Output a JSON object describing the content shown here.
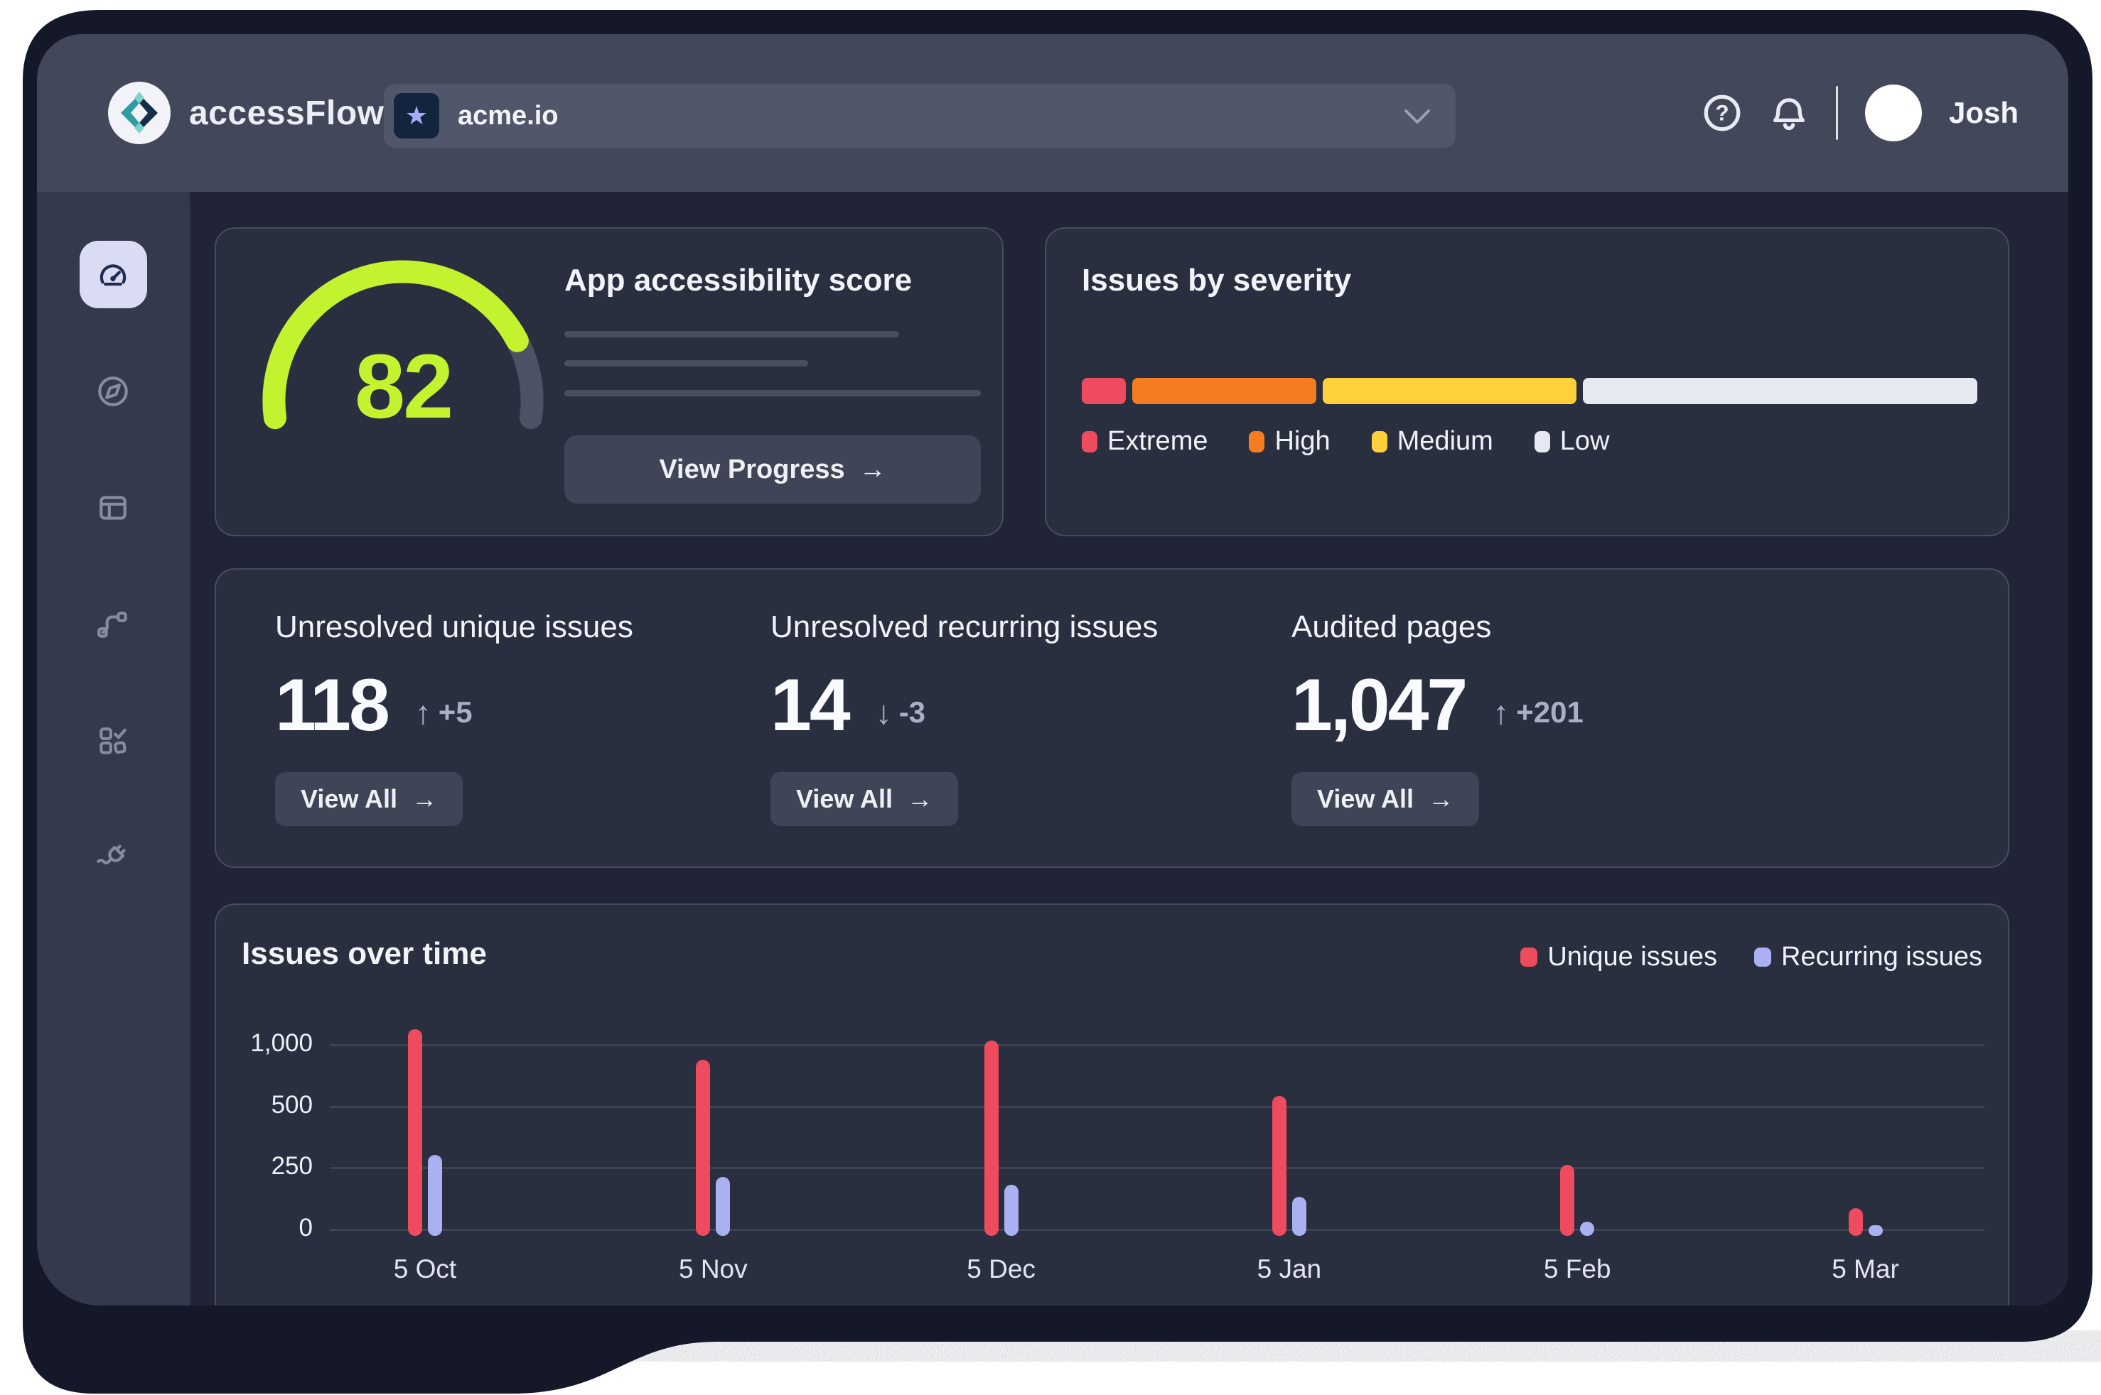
{
  "colors": {
    "accent_lime": "#c3f22f",
    "gauge_track": "#4d5364",
    "severity_extreme": "#ee4b5e",
    "severity_high": "#f57c20",
    "severity_medium": "#fed13c",
    "severity_low": "#e7e9f2",
    "chart_unique": "#ee4b5e",
    "chart_recurring": "#abb0f2",
    "window_frame": "#141828",
    "header_bg": "#42475a",
    "card_bg": "#2a2f40"
  },
  "header": {
    "brand": "accessFlow",
    "project": {
      "icon": "star-icon",
      "value": "acme.io"
    },
    "user": {
      "name": "Josh"
    }
  },
  "sidebar": {
    "items": [
      {
        "id": "dashboard",
        "icon": "gauge-icon",
        "active": true
      },
      {
        "id": "explore",
        "icon": "compass-icon",
        "active": false
      },
      {
        "id": "pages",
        "icon": "layout-icon",
        "active": false
      },
      {
        "id": "flows",
        "icon": "route-icon",
        "active": false
      },
      {
        "id": "checks",
        "icon": "tasks-check-icon",
        "active": false
      },
      {
        "id": "integrations",
        "icon": "plug-icon",
        "active": false
      }
    ]
  },
  "score_card": {
    "title": "App accessibility score",
    "score": "82",
    "score_value": 82,
    "score_max": 100,
    "button_label": "View Progress",
    "button_arrow": "→"
  },
  "severity_card": {
    "title": "Issues by severity",
    "segments": [
      {
        "label": "Extreme",
        "color": "#ee4b5e",
        "percent": 5
      },
      {
        "label": "High",
        "color": "#f57c20",
        "percent": 21
      },
      {
        "label": "Medium",
        "color": "#fed13c",
        "percent": 29
      },
      {
        "label": "Low",
        "color": "#e7e9f2",
        "percent": 45
      }
    ]
  },
  "stats_card": {
    "stats": [
      {
        "label": "Unresolved unique issues",
        "value": "118",
        "trend": "up",
        "arrow": "↑",
        "delta": "+5",
        "button_label": "View All",
        "button_arrow": "→"
      },
      {
        "label": "Unresolved recurring issues",
        "value": "14",
        "trend": "down",
        "arrow": "↓",
        "delta": "-3",
        "button_label": "View All",
        "button_arrow": "→"
      },
      {
        "label": "Audited pages",
        "value": "1,047",
        "trend": "up",
        "arrow": "↑",
        "delta": "+201",
        "button_label": "View All",
        "button_arrow": "→"
      }
    ]
  },
  "chart_card": {
    "title": "Issues over time"
  },
  "chart_data": {
    "type": "bar",
    "title": "Issues over time",
    "categories": [
      "5 Oct",
      "5 Nov",
      "5 Dec",
      "5 Jan",
      "5 Feb",
      "5 Mar"
    ],
    "series": [
      {
        "name": "Unique issues",
        "color": "#ee4b5e",
        "values": [
          1120,
          875,
          1030,
          580,
          260,
          85
        ]
      },
      {
        "name": "Recurring issues",
        "color": "#abb0f2",
        "values": [
          300,
          210,
          180,
          130,
          30,
          15
        ]
      }
    ],
    "y_ticks": [
      0,
      250,
      500,
      1000
    ],
    "y_tick_labels": [
      "0",
      "250",
      "500",
      "1,000"
    ],
    "y_axis_note": "tick marks evenly spaced (non-linear above 500)",
    "grid": true,
    "legend_position": "top-right"
  }
}
